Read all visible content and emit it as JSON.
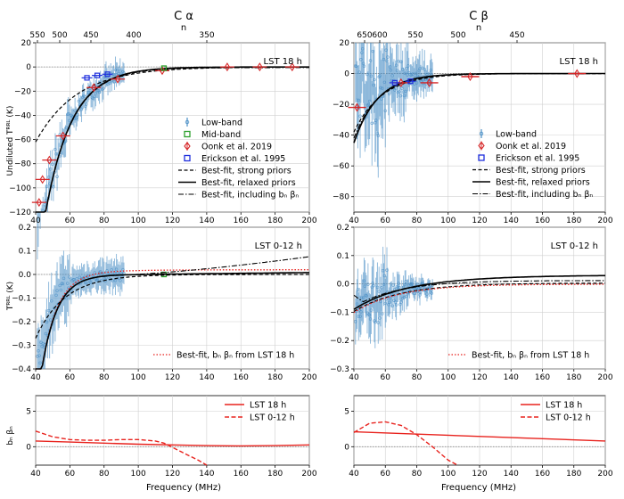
{
  "figure": {
    "columns": [
      {
        "title": "C α",
        "top_axis_unit": "n",
        "top_ticks": [
          "550",
          "500",
          "450",
          "400",
          "350"
        ]
      },
      {
        "title": "C β",
        "top_axis_unit": "n",
        "top_ticks": [
          "650",
          "600",
          "550",
          "500",
          "450"
        ]
      }
    ],
    "xlabel": "Frequency (MHz)",
    "x_ticks": [
      "40",
      "60",
      "80",
      "100",
      "120",
      "140",
      "160",
      "180",
      "200"
    ],
    "row_ylabels": [
      "Undiluted Tᴿᴿᴸ (K)",
      "Tᴿᴿᴸ (K)",
      "bₙ βₙ"
    ],
    "colors": {
      "data": "#4a8fc6",
      "mid": "#2ca02c",
      "oonk": "#d62728",
      "erickson": "#1f2fdd",
      "fit": "#000000",
      "nb": "#e8221d"
    }
  },
  "chart_data": [
    {
      "type": "scatter",
      "panel": "C-alpha-LST18",
      "annotation": "LST 18 h",
      "xlim": [
        40,
        200
      ],
      "ylim": [
        -120,
        20
      ],
      "y_ticks": [
        "20",
        "0",
        "−20",
        "−40",
        "−60",
        "−80",
        "−100",
        "−120"
      ],
      "legend_position": "center-right",
      "legend": [
        "Low-band",
        "Mid-band",
        "Oonk et al. 2019",
        "Erickson et al. 1995",
        "Best-fit, strong priors",
        "Best-fit, relaxed priors",
        "Best-fit, including bₙ βₙ"
      ],
      "series": [
        {
          "name": "Oonk et al. 2019",
          "x": [
            42,
            44,
            48,
            56,
            74,
            88,
            114,
            152,
            171,
            190
          ],
          "y": [
            -112,
            -93,
            -77,
            -57,
            -17,
            -10,
            -3,
            0,
            0,
            0
          ]
        },
        {
          "name": "Mid-band",
          "x": [
            115
          ],
          "y": [
            -1
          ]
        },
        {
          "name": "Erickson et al. 1995",
          "x": [
            70,
            76,
            82
          ],
          "y": [
            -9,
            -7,
            -6
          ]
        }
      ]
    },
    {
      "type": "scatter",
      "panel": "C-beta-LST18",
      "annotation": "LST 18 h",
      "xlim": [
        40,
        200
      ],
      "ylim": [
        -90,
        20
      ],
      "y_ticks": [
        "20",
        "0",
        "−20",
        "−40",
        "−60",
        "−80"
      ],
      "legend_position": "center-right",
      "legend": [
        "Low-band",
        "Oonk et al. 2019",
        "Erickson et al. 1995",
        "Best-fit, strong priors",
        "Best-fit, relaxed priors",
        "Best-fit, including bₙ βₙ"
      ],
      "series": [
        {
          "name": "Oonk et al. 2019",
          "x": [
            42,
            70,
            88,
            114,
            182
          ],
          "y": [
            -22,
            -6,
            -6,
            -2,
            0
          ]
        },
        {
          "name": "Erickson et al. 1995",
          "x": [
            66,
            76
          ],
          "y": [
            -6,
            -5
          ]
        }
      ]
    },
    {
      "type": "line",
      "panel": "C-alpha-LST0-12",
      "annotation": "LST 0-12 h",
      "xlim": [
        40,
        200
      ],
      "ylim": [
        -0.4,
        0.2
      ],
      "y_ticks": [
        "0.2",
        "0.1",
        "0.0",
        "−0.1",
        "−0.2",
        "−0.3",
        "−0.4"
      ],
      "legend": [
        "Best-fit, bₙ βₙ from LST 18 h"
      ]
    },
    {
      "type": "line",
      "panel": "C-beta-LST0-12",
      "annotation": "LST 0-12 h",
      "xlim": [
        40,
        200
      ],
      "ylim": [
        -0.3,
        0.2
      ],
      "y_ticks": [
        "0.2",
        "0.1",
        "0.0",
        "−0.1",
        "−0.2",
        "−0.3"
      ],
      "legend": [
        "Best-fit, bₙ βₙ from LST 18 h"
      ]
    },
    {
      "type": "line",
      "panel": "C-alpha-bn",
      "xlim": [
        40,
        200
      ],
      "ylim": [
        -2.6,
        7.2
      ],
      "y_ticks": [
        "5",
        "0"
      ],
      "legend": [
        "LST 18 h",
        "LST 0-12 h"
      ],
      "series": [
        {
          "name": "LST 18 h",
          "x": [
            40,
            60,
            80,
            100,
            120,
            140,
            160,
            180,
            200
          ],
          "y": [
            0.8,
            0.65,
            0.5,
            0.35,
            0.25,
            0.15,
            0.12,
            0.15,
            0.25
          ]
        },
        {
          "name": "LST 0-12 h",
          "x": [
            40,
            50,
            60,
            70,
            80,
            90,
            100,
            110,
            115,
            120,
            125,
            130,
            135,
            140
          ],
          "y": [
            2.2,
            1.4,
            1.0,
            0.9,
            0.9,
            1.0,
            1.0,
            0.8,
            0.5,
            -0.1,
            -0.7,
            -1.3,
            -1.9,
            -2.6
          ]
        }
      ]
    },
    {
      "type": "line",
      "panel": "C-beta-bn",
      "xlim": [
        40,
        200
      ],
      "ylim": [
        -2.6,
        7.2
      ],
      "y_ticks": [
        "5",
        "0"
      ],
      "legend": [
        "LST 18 h",
        "LST 0-12 h"
      ],
      "series": [
        {
          "name": "LST 18 h",
          "x": [
            40,
            200
          ],
          "y": [
            2.1,
            0.8
          ]
        },
        {
          "name": "LST 0-12 h",
          "x": [
            40,
            50,
            60,
            70,
            80,
            90,
            100,
            106
          ],
          "y": [
            2.0,
            3.3,
            3.5,
            3.0,
            1.7,
            0.0,
            -1.9,
            -2.6
          ]
        }
      ]
    }
  ]
}
